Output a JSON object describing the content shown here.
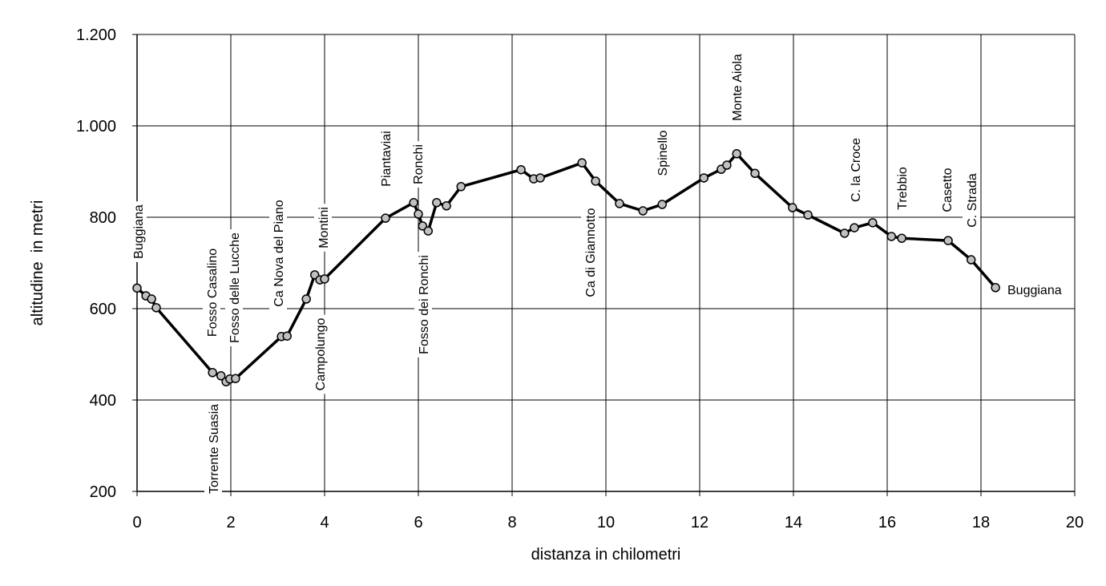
{
  "chart_data": {
    "type": "line",
    "x_label": "distanza in chilometri",
    "y_label": "altitudine  in metri",
    "x": [
      0,
      0.19,
      0.31,
      0.41,
      1.61,
      1.79,
      1.9,
      1.98,
      2.1,
      3.08,
      3.2,
      3.61,
      3.79,
      3.9,
      4.0,
      5.3,
      5.9,
      6.0,
      6.09,
      6.21,
      6.39,
      6.6,
      6.91,
      8.19,
      8.46,
      8.6,
      9.49,
      9.78,
      10.29,
      10.79,
      11.2,
      12.09,
      12.46,
      12.58,
      12.79,
      13.18,
      13.98,
      14.31,
      15.09,
      15.3,
      15.69,
      16.09,
      16.31,
      17.3,
      17.79,
      18.31
    ],
    "values": [
      645,
      628,
      621,
      602,
      460,
      453,
      440,
      446,
      447,
      539,
      540,
      621,
      674,
      663,
      665,
      798,
      832,
      807,
      781,
      770,
      832,
      825,
      867,
      904,
      884,
      886,
      919,
      879,
      830,
      814,
      828,
      886,
      905,
      914,
      939,
      896,
      821,
      805,
      765,
      777,
      788,
      758,
      754,
      749,
      707,
      646
    ],
    "color": "#000000",
    "marker_color": "#c0c0c0",
    "xlim": [
      0,
      20
    ],
    "xticks": [
      0,
      2,
      4,
      6,
      8,
      10,
      12,
      14,
      16,
      18,
      20
    ],
    "ylim": [
      200,
      1200
    ],
    "yticks": [
      200,
      400,
      600,
      800,
      {
        "value": 1000,
        "label": "1.000"
      },
      {
        "value": 1200,
        "label": "1.200"
      }
    ],
    "grid": true,
    "annotations": [
      "Buggiana",
      "Fosso Casalino",
      "Fosso delle Lucche",
      "Torrente Suasia",
      "Ca Nova del Piano",
      "Montini",
      "Campolungo",
      "Piantaviai",
      "Ronchi",
      "Fosso dei Ronchi",
      "Ca di Giannotto",
      "Spinello",
      "Monte Aiola",
      "C. la Croce",
      "Trebbio",
      "Casetto",
      "C. Strada",
      "Buggiana"
    ]
  }
}
